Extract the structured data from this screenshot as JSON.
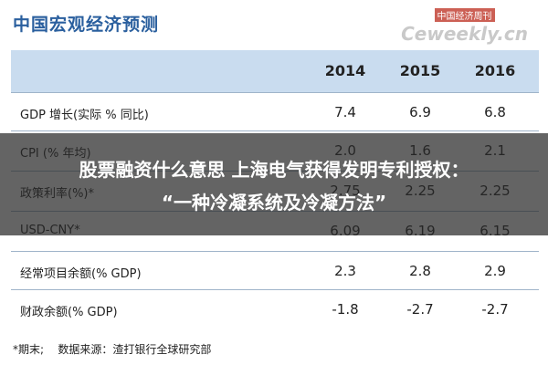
{
  "header": {
    "title": "中国宏观经济预测",
    "watermark": "中国经济周刊",
    "watermark_sub": "Ceweekly.cn"
  },
  "table": {
    "columns": [
      "2014",
      "2015",
      "2016"
    ],
    "rows": [
      [
        "GDP 增长(实际 % 同比)",
        "7.4",
        "6.9",
        "6.8"
      ],
      [
        "CPI (% 年均)",
        "2.0",
        "1.6",
        "2.1"
      ],
      [
        "政策利率(%)*",
        "2.75",
        "2.25",
        "2.25"
      ],
      [
        "USD-CNY*",
        "6.09",
        "6.19",
        "6.15"
      ],
      [
        "经常项目余额(% GDP)",
        "2.3",
        "2.8",
        "2.9"
      ],
      [
        "财政余额(% GDP)",
        "-1.8",
        "-2.7",
        "-2.7"
      ]
    ]
  },
  "footer": {
    "note": "*期末;",
    "source": "数据来源：渣打银行全球研究部"
  },
  "banner": {
    "lines": [
      "股票融资什么意思 上海电气获得发明专利授权：",
      "“一种冷凝系统及冷凝方法”"
    ]
  }
}
